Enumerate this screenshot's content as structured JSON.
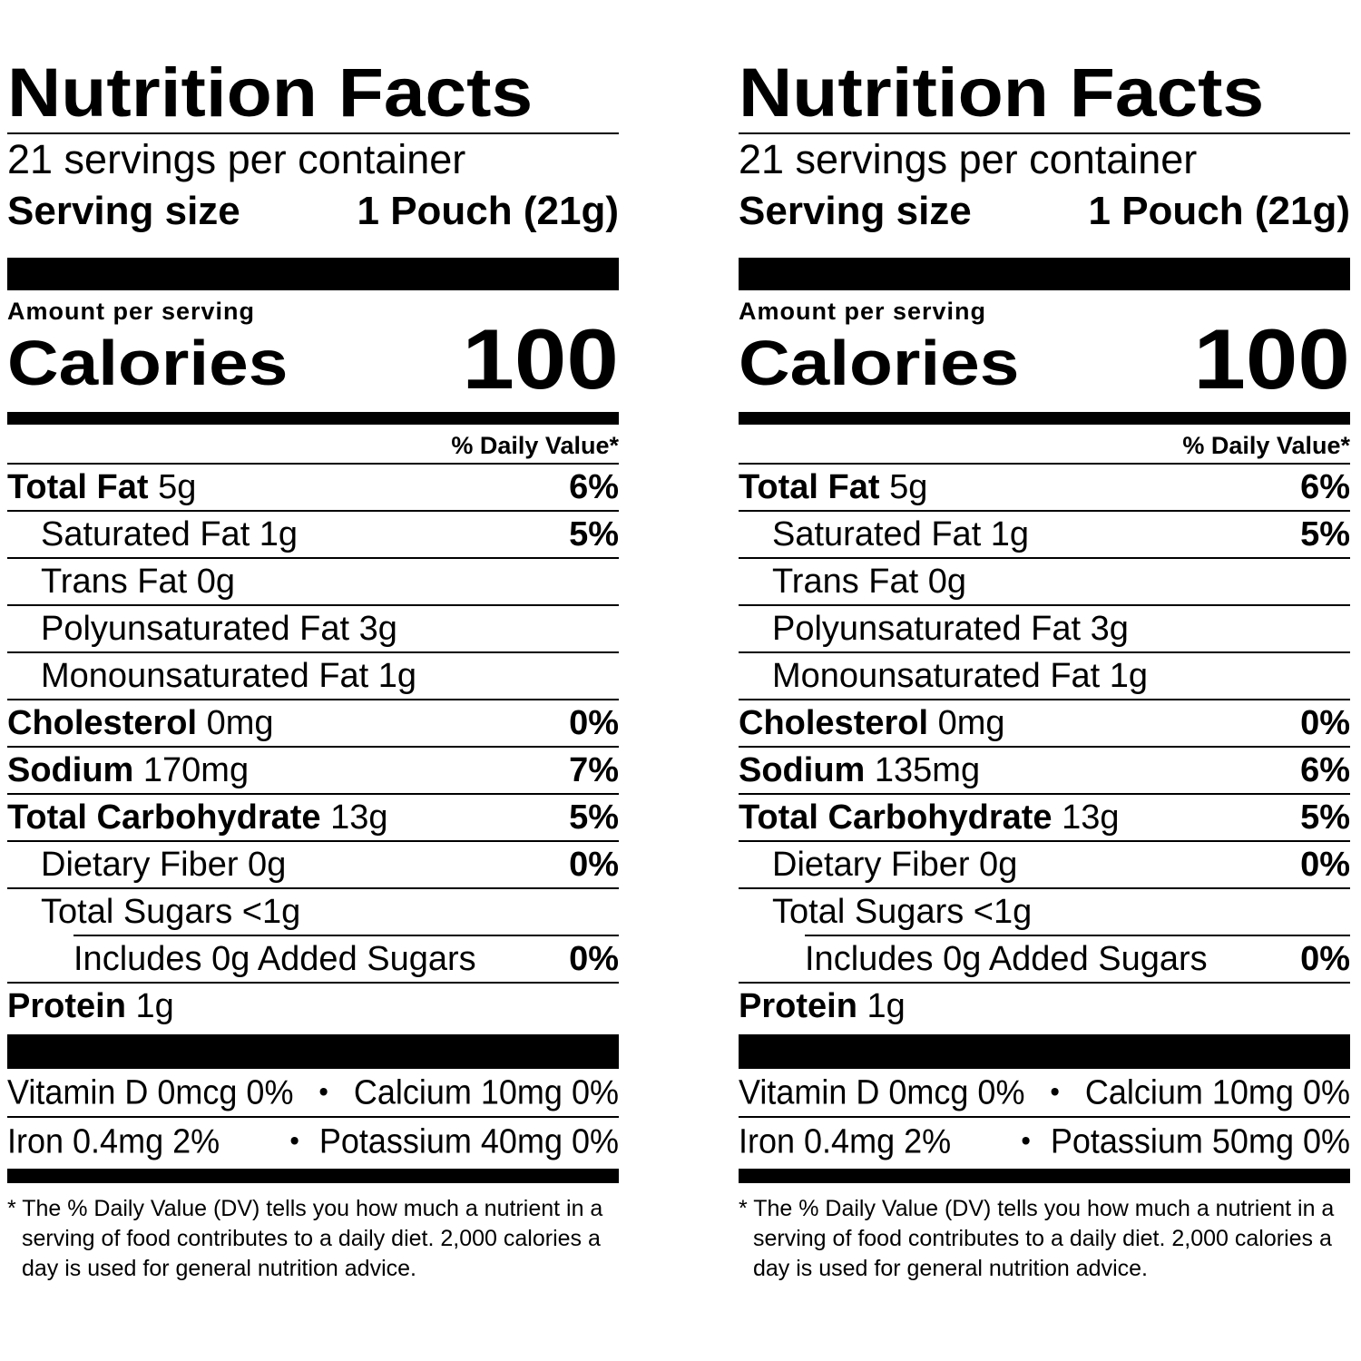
{
  "labels": [
    {
      "title": "Nutrition Facts",
      "servings": "21 servings per container",
      "serving_size_label": "Serving size",
      "serving_size_value": "1 Pouch (21g)",
      "amount_per_serving": "Amount per serving",
      "calories_label": "Calories",
      "calories_value": "100",
      "dv_header": "% Daily Value*",
      "rows": [
        {
          "name": "Total Fat",
          "amount": "5g",
          "dv": "6%"
        },
        {
          "name": "Saturated Fat 1g",
          "dv": "5%"
        },
        {
          "name": "Trans Fat 0g",
          "dv": ""
        },
        {
          "name": "Polyunsaturated Fat 3g",
          "dv": ""
        },
        {
          "name": "Monounsaturated Fat 1g",
          "dv": ""
        },
        {
          "name": "Cholesterol",
          "amount": "0mg",
          "dv": "0%"
        },
        {
          "name": "Sodium",
          "amount": "170mg",
          "dv": "7%"
        },
        {
          "name": "Total Carbohydrate",
          "amount": "13g",
          "dv": "5%"
        },
        {
          "name": "Dietary Fiber 0g",
          "dv": "0%"
        },
        {
          "name": "Total Sugars <1g",
          "dv": ""
        },
        {
          "name": "Includes 0g Added Sugars",
          "dv": "0%"
        },
        {
          "name": "Protein",
          "amount": "1g",
          "dv": ""
        }
      ],
      "vitamins": {
        "vitamin_d": "Vitamin D 0mcg 0%",
        "calcium": "Calcium 10mg 0%",
        "iron": "Iron 0.4mg 2%",
        "potassium": "Potassium 40mg 0%",
        "bullet": "•"
      },
      "footnote": "* The % Daily Value (DV) tells you how much a nutrient in a serving of food contributes to a daily diet. 2,000 calories a day is used for general nutrition advice."
    },
    {
      "title": "Nutrition Facts",
      "servings": "21 servings per container",
      "serving_size_label": "Serving size",
      "serving_size_value": "1 Pouch (21g)",
      "amount_per_serving": "Amount per serving",
      "calories_label": "Calories",
      "calories_value": "100",
      "dv_header": "% Daily Value*",
      "rows": [
        {
          "name": "Total Fat",
          "amount": "5g",
          "dv": "6%"
        },
        {
          "name": "Saturated Fat 1g",
          "dv": "5%"
        },
        {
          "name": "Trans Fat 0g",
          "dv": ""
        },
        {
          "name": "Polyunsaturated Fat 3g",
          "dv": ""
        },
        {
          "name": "Monounsaturated Fat 1g",
          "dv": ""
        },
        {
          "name": "Cholesterol",
          "amount": "0mg",
          "dv": "0%"
        },
        {
          "name": "Sodium",
          "amount": "135mg",
          "dv": "6%"
        },
        {
          "name": "Total Carbohydrate",
          "amount": "13g",
          "dv": "5%"
        },
        {
          "name": "Dietary Fiber 0g",
          "dv": "0%"
        },
        {
          "name": "Total Sugars <1g",
          "dv": ""
        },
        {
          "name": "Includes 0g Added Sugars",
          "dv": "0%"
        },
        {
          "name": "Protein",
          "amount": "1g",
          "dv": ""
        }
      ],
      "vitamins": {
        "vitamin_d": "Vitamin D 0mcg 0%",
        "calcium": "Calcium 10mg 0%",
        "iron": "Iron 0.4mg 2%",
        "potassium": "Potassium 50mg 0%",
        "bullet": "•"
      },
      "footnote": "* The % Daily Value (DV) tells you how much a nutrient in a serving of food contributes to a daily diet. 2,000 calories a day is used for general nutrition advice."
    }
  ]
}
